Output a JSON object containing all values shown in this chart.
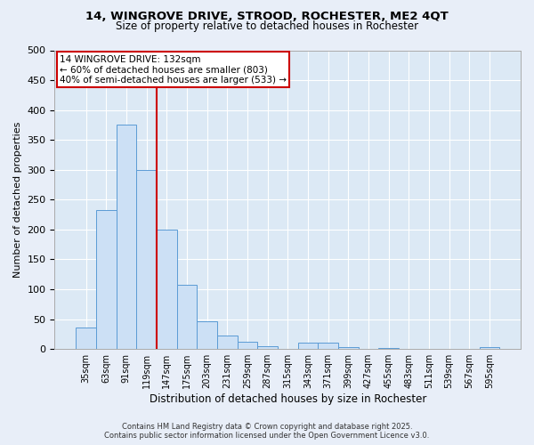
{
  "title_line1": "14, WINGROVE DRIVE, STROOD, ROCHESTER, ME2 4QT",
  "title_line2": "Size of property relative to detached houses in Rochester",
  "xlabel": "Distribution of detached houses by size in Rochester",
  "ylabel": "Number of detached properties",
  "categories": [
    "35sqm",
    "63sqm",
    "91sqm",
    "119sqm",
    "147sqm",
    "175sqm",
    "203sqm",
    "231sqm",
    "259sqm",
    "287sqm",
    "315sqm",
    "343sqm",
    "371sqm",
    "399sqm",
    "427sqm",
    "455sqm",
    "483sqm",
    "511sqm",
    "539sqm",
    "567sqm",
    "595sqm"
  ],
  "values": [
    36,
    233,
    375,
    300,
    200,
    107,
    46,
    22,
    12,
    5,
    0,
    10,
    10,
    4,
    0,
    2,
    0,
    0,
    0,
    0,
    3
  ],
  "bar_color": "#cce0f5",
  "bar_edge_color": "#5b9bd5",
  "vline_x": 3.5,
  "vline_color": "#cc0000",
  "annotation_title": "14 WINGROVE DRIVE: 132sqm",
  "annotation_line2": "← 60% of detached houses are smaller (803)",
  "annotation_line3": "40% of semi-detached houses are larger (533) →",
  "annotation_box_color": "#cc0000",
  "ylim": [
    0,
    500
  ],
  "yticks": [
    0,
    50,
    100,
    150,
    200,
    250,
    300,
    350,
    400,
    450,
    500
  ],
  "fig_bg_color": "#e8eef8",
  "plot_bg_color": "#dce9f5",
  "grid_color": "#ffffff",
  "footer_line1": "Contains HM Land Registry data © Crown copyright and database right 2025.",
  "footer_line2": "Contains public sector information licensed under the Open Government Licence v3.0."
}
